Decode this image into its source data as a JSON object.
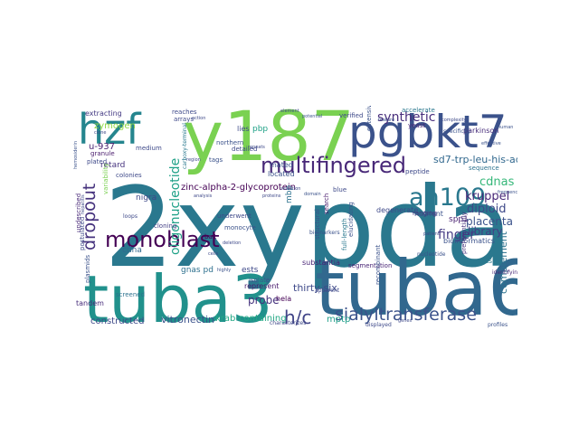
{
  "words": [
    {
      "text": "2xypda",
      "color": "#2a788e"
    },
    {
      "text": "tuba6",
      "color": "#31688e"
    },
    {
      "text": "tuba3",
      "color": "#21918c"
    },
    {
      "text": "y187",
      "color": "#7ad151"
    },
    {
      "text": "pgbkt7",
      "color": "#3b528b"
    },
    {
      "text": "hzf",
      "color": "#25858e"
    },
    {
      "text": "multifingered",
      "color": "#482878"
    },
    {
      "text": "ah109",
      "color": "#2a788e"
    },
    {
      "text": "monoblast",
      "color": "#440154"
    },
    {
      "text": "sialyltransferase",
      "color": "#3b528b"
    },
    {
      "text": "h/c",
      "color": "#414487"
    },
    {
      "text": "dropout",
      "color": "#46337e"
    },
    {
      "text": "sd7-trp-leu-his-ade",
      "color": "#31688e"
    },
    {
      "text": "synthetic",
      "color": "#472d7b"
    },
    {
      "text": "zinc-alpha-2-glycoprotein",
      "color": "#440154"
    },
    {
      "text": "oligonucleotide",
      "color": "#1fa187"
    },
    {
      "text": "finger",
      "color": "#443a83"
    },
    {
      "text": "cdnas",
      "color": "#35b779"
    },
    {
      "text": "kruppel",
      "color": "#482878"
    },
    {
      "text": "diploid",
      "color": "#3e4989"
    },
    {
      "text": "placenta",
      "color": "#3b528b"
    },
    {
      "text": "library",
      "color": "#433e85"
    },
    {
      "text": "complement",
      "color": "#2c728e"
    },
    {
      "text": "thirty-six",
      "color": "#3e4989"
    },
    {
      "text": "probe",
      "color": "#46337e"
    },
    {
      "text": "mptp",
      "color": "#1f9e89"
    },
    {
      "text": "vitronectin",
      "color": "#3b528b"
    },
    {
      "text": "krab-containing",
      "color": "#22a884"
    },
    {
      "text": "constructed",
      "color": "#3e4989"
    },
    {
      "text": "zymogen",
      "color": "#8fd744"
    },
    {
      "text": "u-937",
      "color": "#481f70"
    },
    {
      "text": "retard",
      "color": "#46337e"
    },
    {
      "text": "extracting",
      "color": "#443a83"
    },
    {
      "text": "cdna",
      "color": "#31688e"
    },
    {
      "text": "nigra",
      "color": "#3e4989"
    },
    {
      "text": "gnas pd",
      "color": "#2d708e"
    },
    {
      "text": "ests",
      "color": "#3e4989"
    },
    {
      "text": "tandem",
      "color": "#472d7b"
    },
    {
      "text": "represent",
      "color": "#481a6c"
    },
    {
      "text": "hela",
      "color": "#440154"
    },
    {
      "text": "mated",
      "color": "#3b528b"
    },
    {
      "text": "located",
      "color": "#3b528b"
    },
    {
      "text": "substantia",
      "color": "#482475"
    },
    {
      "text": "sequence",
      "color": "#2c728e"
    },
    {
      "text": "spp1",
      "color": "#481f70"
    },
    {
      "text": "connects",
      "color": "#2a788e"
    },
    {
      "text": "nutrient",
      "color": "#3b528b"
    },
    {
      "text": "degenerate",
      "color": "#3e4989"
    },
    {
      "text": "bioinformatics",
      "color": "#3b528b"
    },
    {
      "text": "parkinson",
      "color": "#472d7b"
    },
    {
      "text": "accelerate",
      "color": "#2a788e"
    },
    {
      "text": "verified",
      "color": "#3e4989"
    },
    {
      "text": "yeast",
      "color": "#482878"
    },
    {
      "text": "ranging",
      "color": "#46337e"
    },
    {
      "text": "reaches",
      "color": "#3e4989"
    },
    {
      "text": "arrays",
      "color": "#3e4989"
    },
    {
      "text": "lies",
      "color": "#3e4989"
    },
    {
      "text": "pbp",
      "color": "#1fa187"
    },
    {
      "text": "northern",
      "color": "#3b528b"
    },
    {
      "text": "tags",
      "color": "#3b528b"
    },
    {
      "text": "colonies",
      "color": "#3e4989"
    },
    {
      "text": "granule",
      "color": "#481a6c"
    },
    {
      "text": "plated",
      "color": "#3e4989"
    },
    {
      "text": "blue",
      "color": "#3e4989"
    },
    {
      "text": "mbp",
      "color": "#2c728e"
    },
    {
      "text": "monocyte",
      "color": "#3b528b"
    },
    {
      "text": "bait",
      "color": "#440154"
    },
    {
      "text": "cloning",
      "color": "#433e85"
    },
    {
      "text": "postulated",
      "color": "#3e4989"
    },
    {
      "text": "undescribed",
      "color": "#482878"
    },
    {
      "text": "plasmids",
      "color": "#3b528b"
    },
    {
      "text": "full-length",
      "color": "#2a788e"
    },
    {
      "text": "peptide",
      "color": "#3e4989"
    },
    {
      "text": "search",
      "color": "#481a6c"
    },
    {
      "text": "structural",
      "color": "#3b528b"
    },
    {
      "text": "segmentation",
      "color": "#482475"
    },
    {
      "text": "screened",
      "color": "#2c728e"
    },
    {
      "text": "isolate",
      "color": "#3b528b"
    },
    {
      "text": "detailed",
      "color": "#3e4989"
    },
    {
      "text": "underwent",
      "color": "#3e4989"
    },
    {
      "text": "elucidating",
      "color": "#3b528b"
    },
    {
      "text": "extensive",
      "color": "#3b528b"
    },
    {
      "text": "variability",
      "color": "#7ad151"
    },
    {
      "text": "specificity",
      "color": "#3b528b"
    },
    {
      "text": "preferentially",
      "color": "#46337e"
    },
    {
      "text": "apparent",
      "color": "#3e4989"
    },
    {
      "text": "recombinant",
      "color": "#3b528b"
    },
    {
      "text": "biomarkers",
      "color": "#3b528b"
    },
    {
      "text": "displayed",
      "color": "#3e4989"
    },
    {
      "text": "characterizes",
      "color": "#3e4989"
    },
    {
      "text": "nucleotide",
      "color": "#3b528b"
    },
    {
      "text": "identifying",
      "color": "#482878"
    },
    {
      "text": "profiles",
      "color": "#3b528b"
    },
    {
      "text": "frequency",
      "color": "#3b528b"
    },
    {
      "text": "effective",
      "color": "#3b528b"
    },
    {
      "text": "patient",
      "color": "#3e4989"
    },
    {
      "text": "medium",
      "color": "#3e4989"
    },
    {
      "text": "loops",
      "color": "#3e4989"
    },
    {
      "text": "action",
      "color": "#3e4989"
    },
    {
      "text": "potential",
      "color": "#3b528b"
    },
    {
      "text": "carboxy-terminal",
      "color": "#2a788e"
    },
    {
      "text": "hemosiderin",
      "color": "#3b528b"
    },
    {
      "text": "complexity",
      "color": "#3e4989"
    },
    {
      "text": "element",
      "color": "#3e4989"
    },
    {
      "text": "feature",
      "color": "#3b528b"
    },
    {
      "text": "repeats",
      "color": "#3e4989"
    },
    {
      "text": "hepatitis",
      "color": "#3e4989"
    },
    {
      "text": "highly",
      "color": "#3b528b"
    },
    {
      "text": "deletion",
      "color": "#3e4989"
    },
    {
      "text": "region",
      "color": "#3e4989"
    },
    {
      "text": "selection",
      "color": "#3e4989"
    },
    {
      "text": "proteins",
      "color": "#3e4989"
    },
    {
      "text": "domain",
      "color": "#3b528b"
    },
    {
      "text": "analysis",
      "color": "#3e4989"
    },
    {
      "text": "genes",
      "color": "#3e4989"
    },
    {
      "text": "cells",
      "color": "#3e4989"
    },
    {
      "text": "human",
      "color": "#3b528b"
    },
    {
      "text": "clone",
      "color": "#3e4989"
    }
  ]
}
